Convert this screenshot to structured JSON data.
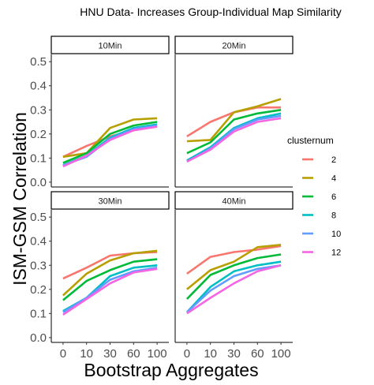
{
  "chart_data": {
    "type": "line",
    "title": "HNU Data- Increases Group-Individual Map Similarity",
    "xlabel": "Bootstrap Aggregates",
    "ylabel": "ISM-GSM Correlation",
    "x_categories": [
      "0",
      "10",
      "30",
      "60",
      "100"
    ],
    "y_ticks": [
      0.0,
      0.1,
      0.2,
      0.3,
      0.4,
      0.5
    ],
    "y_tick_labels": [
      "0.0",
      "0.1",
      "0.2",
      "0.3",
      "0.4",
      "0.5"
    ],
    "ylim": [
      -0.02,
      0.53
    ],
    "grid": false,
    "legend": {
      "title": "clusternum",
      "position": "right",
      "entries": [
        "2",
        "4",
        "6",
        "8",
        "10",
        "12"
      ],
      "colors": [
        "#F8766D",
        "#B79F00",
        "#00BA38",
        "#00BFC4",
        "#619CFF",
        "#F564E3"
      ]
    },
    "panels": [
      {
        "label": "10Min",
        "series": [
          {
            "name": "2",
            "values": [
              0.105,
              0.15,
              0.19,
              0.215,
              0.235
            ]
          },
          {
            "name": "4",
            "values": [
              0.105,
              0.12,
              0.225,
              0.26,
              0.265
            ]
          },
          {
            "name": "6",
            "values": [
              0.08,
              0.12,
              0.2,
              0.235,
              0.25
            ]
          },
          {
            "name": "8",
            "values": [
              0.07,
              0.11,
              0.185,
              0.225,
              0.24
            ]
          },
          {
            "name": "10",
            "values": [
              0.07,
              0.105,
              0.18,
              0.22,
              0.235
            ]
          },
          {
            "name": "12",
            "values": [
              0.065,
              0.11,
              0.175,
              0.215,
              0.23
            ]
          }
        ]
      },
      {
        "label": "20Min",
        "series": [
          {
            "name": "2",
            "values": [
              0.19,
              0.25,
              0.29,
              0.31,
              0.31
            ]
          },
          {
            "name": "4",
            "values": [
              0.17,
              0.175,
              0.29,
              0.315,
              0.345
            ]
          },
          {
            "name": "6",
            "values": [
              0.12,
              0.165,
              0.26,
              0.285,
              0.3
            ]
          },
          {
            "name": "8",
            "values": [
              0.09,
              0.145,
              0.225,
              0.265,
              0.285
            ]
          },
          {
            "name": "10",
            "values": [
              0.085,
              0.14,
              0.22,
              0.26,
              0.275
            ]
          },
          {
            "name": "12",
            "values": [
              0.085,
              0.135,
              0.21,
              0.25,
              0.265
            ]
          }
        ]
      },
      {
        "label": "30Min",
        "series": [
          {
            "name": "2",
            "values": [
              0.245,
              0.29,
              0.34,
              0.35,
              0.355
            ]
          },
          {
            "name": "4",
            "values": [
              0.175,
              0.265,
              0.32,
              0.35,
              0.36
            ]
          },
          {
            "name": "6",
            "values": [
              0.155,
              0.235,
              0.28,
              0.315,
              0.325
            ]
          },
          {
            "name": "8",
            "values": [
              0.11,
              0.165,
              0.255,
              0.29,
              0.3
            ]
          },
          {
            "name": "10",
            "values": [
              0.105,
              0.165,
              0.24,
              0.275,
              0.29
            ]
          },
          {
            "name": "12",
            "values": [
              0.095,
              0.16,
              0.225,
              0.27,
              0.285
            ]
          }
        ]
      },
      {
        "label": "40Min",
        "series": [
          {
            "name": "2",
            "values": [
              0.265,
              0.335,
              0.355,
              0.365,
              0.38
            ]
          },
          {
            "name": "4",
            "values": [
              0.2,
              0.28,
              0.315,
              0.375,
              0.385
            ]
          },
          {
            "name": "6",
            "values": [
              0.16,
              0.26,
              0.3,
              0.33,
              0.345
            ]
          },
          {
            "name": "8",
            "values": [
              0.105,
              0.21,
              0.275,
              0.3,
              0.315
            ]
          },
          {
            "name": "10",
            "values": [
              0.105,
              0.195,
              0.255,
              0.285,
              0.3
            ]
          },
          {
            "name": "12",
            "values": [
              0.1,
              0.165,
              0.225,
              0.275,
              0.3
            ]
          }
        ]
      }
    ]
  }
}
